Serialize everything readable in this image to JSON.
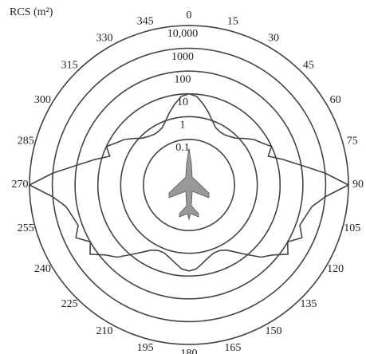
{
  "chart_data": {
    "type": "polar",
    "title": "RCS (m²)",
    "theta": [
      0,
      5,
      10,
      15,
      20,
      25,
      30,
      35,
      40,
      45,
      50,
      55,
      60,
      65,
      70,
      75,
      80,
      85,
      90,
      95,
      100,
      105,
      110,
      115,
      120,
      125,
      130,
      135,
      140,
      145,
      150,
      155,
      160,
      165,
      170,
      175,
      180,
      185,
      190,
      195,
      200,
      205,
      210,
      215,
      220,
      225,
      230,
      235,
      240,
      245,
      250,
      255,
      260,
      265,
      270,
      275,
      280,
      285,
      290,
      295,
      300,
      305,
      310,
      315,
      320,
      325,
      330,
      335,
      340,
      345,
      350,
      355
    ],
    "values": [
      10,
      8,
      4,
      2,
      1,
      0.6,
      0.5,
      0.5,
      0.6,
      0.8,
      1.5,
      3,
      5,
      10,
      5,
      20,
      100,
      1000,
      10000,
      1000,
      300,
      200,
      150,
      300,
      100,
      200,
      60,
      30,
      10,
      4,
      2,
      1.5,
      1.5,
      2,
      3,
      5,
      6,
      5,
      3,
      2,
      1.5,
      1.5,
      2,
      4,
      10,
      30,
      60,
      200,
      100,
      300,
      150,
      200,
      300,
      1000,
      10000,
      1000,
      100,
      20,
      5,
      10,
      5,
      3,
      1.5,
      0.8,
      0.6,
      0.5,
      0.5,
      0.6,
      1,
      2,
      4,
      8
    ],
    "color": "#444444",
    "rlim": [
      0.001,
      10000
    ],
    "log_r": true,
    "rticks": [
      0.1,
      1,
      10,
      100,
      1000,
      {
        "value": 10000,
        "label": "10,000"
      }
    ],
    "thetaticks": [
      0,
      15,
      30,
      45,
      60,
      75,
      90,
      105,
      120,
      135,
      150,
      165,
      180,
      195,
      210,
      225,
      240,
      255,
      270,
      285,
      300,
      315,
      330,
      345
    ],
    "direction": "clockwise"
  }
}
